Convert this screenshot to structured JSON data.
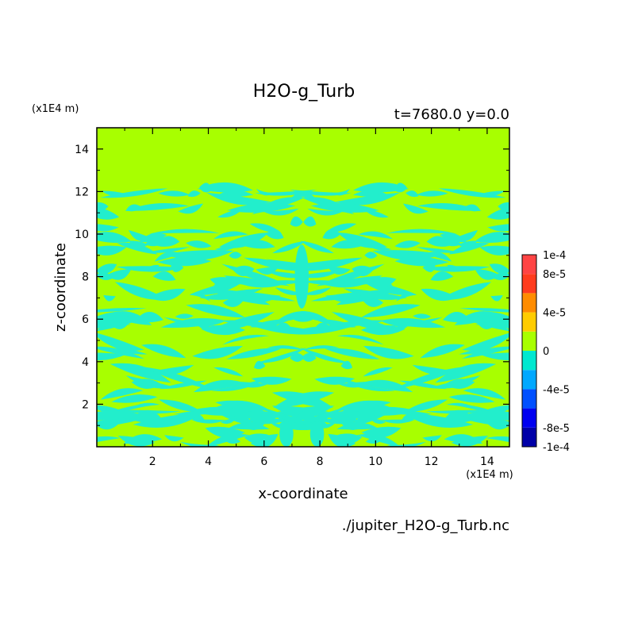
{
  "chart_data": {
    "type": "heatmap",
    "title": "H2O-g_Turb",
    "subtitle": "t=7680.0 y=0.0",
    "xlabel": "x-coordinate",
    "ylabel": "z-coordinate",
    "x_unit": "(x1E4 m)",
    "y_unit": "(x1E4 m)",
    "source_file": "./jupiter_H2O-g_Turb.nc",
    "xlim": [
      0.0,
      14.8
    ],
    "ylim": [
      0.0,
      15.0
    ],
    "x_ticks": [
      2,
      4,
      6,
      8,
      10,
      12,
      14
    ],
    "x_tick_labels": [
      "2",
      "4",
      "6",
      "8",
      "10",
      "12",
      "14"
    ],
    "y_ticks": [
      2,
      4,
      6,
      8,
      10,
      12,
      14
    ],
    "y_tick_labels": [
      "2",
      "4",
      "6",
      "8",
      "10",
      "12",
      "14"
    ],
    "colorbar": {
      "levels": [
        -0.0001,
        -8e-05,
        -6e-05,
        -4e-05,
        -2e-05,
        0,
        2e-05,
        4e-05,
        6e-05,
        8e-05,
        0.0001
      ],
      "colors": [
        "#0000a8",
        "#0000f0",
        "#0050ff",
        "#00a8ff",
        "#00e8d0",
        "#a8ff00",
        "#ffcc00",
        "#ff8c00",
        "#ff3c1e",
        "#ff4444"
      ],
      "tick_values": [
        0.0001,
        8e-05,
        4e-05,
        0,
        -4e-05,
        -8e-05,
        -0.0001
      ],
      "tick_labels": [
        "1e-4",
        "8e-5",
        "4e-5",
        "0",
        "-4e-5",
        "-8e-5",
        "-1e-4"
      ]
    },
    "field": {
      "description_levels": "values near 0 dominate; negative turbulent streaks in lower region",
      "background_color": "#a8ff00",
      "streak_color": "#22eecc",
      "turbulent_layer_top": 12.5,
      "symmetric_about_x": 7.4
    }
  }
}
